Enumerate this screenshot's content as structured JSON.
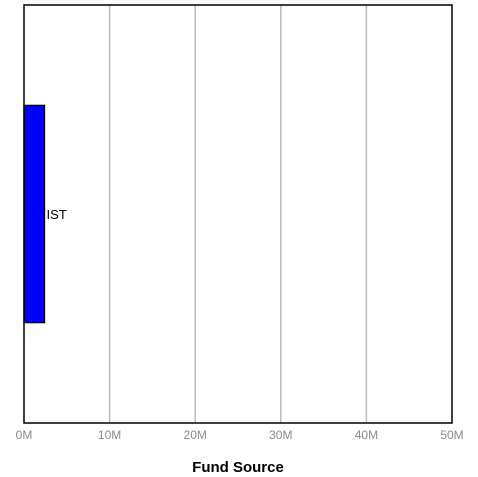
{
  "chart_data": {
    "type": "bar",
    "orientation": "horizontal",
    "categories": [
      "IST"
    ],
    "values": [
      2400000
    ],
    "title": "",
    "xlabel": "Fund Source",
    "ylabel": "",
    "xlim": [
      0,
      50000000
    ],
    "x_ticks": [
      0,
      10000000,
      20000000,
      30000000,
      40000000,
      50000000
    ],
    "x_tick_labels": [
      "0M",
      "10M",
      "20M",
      "30M",
      "40M",
      "50M"
    ],
    "grid": "vertical",
    "bar_color": "#0000ff",
    "grid_color": "#bbbbbb"
  }
}
